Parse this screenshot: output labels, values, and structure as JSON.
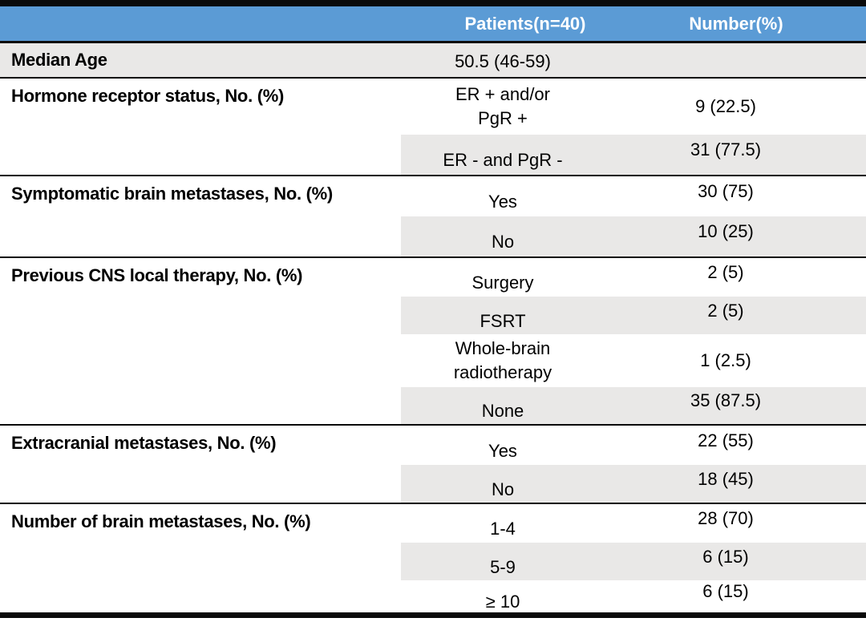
{
  "colors": {
    "header_bg": "#5B9BD5",
    "header_text": "#FFFFFF",
    "band_bg": "#E9E8E7",
    "line_color": "#0A0A0A",
    "body_text": "#000000",
    "page_bg": "#FFFFFF"
  },
  "table": {
    "header": {
      "empty": "",
      "patients": "Patients(n=40)",
      "number": "Number(%)"
    },
    "sections": [
      {
        "label": "Median Age",
        "rows": [
          {
            "option": "50.5 (46-59)",
            "number": ""
          }
        ]
      },
      {
        "label": "Hormone receptor status, No. (%)",
        "rows": [
          {
            "option_lines": [
              "ER + and/or",
              "PgR +"
            ],
            "number": "9 (22.5)"
          },
          {
            "option": "ER - and PgR -",
            "number": "31 (77.5)"
          }
        ]
      },
      {
        "label": "Symptomatic brain metastases, No. (%)",
        "rows": [
          {
            "option": "Yes",
            "number": "30 (75)"
          },
          {
            "option": "No",
            "number": "10 (25)"
          }
        ]
      },
      {
        "label": "Previous CNS local therapy, No. (%)",
        "rows": [
          {
            "option": "Surgery",
            "number": "2 (5)"
          },
          {
            "option": "FSRT",
            "number": "2 (5)"
          },
          {
            "option_lines": [
              "Whole-brain",
              "radiotherapy"
            ],
            "number": "1 (2.5)"
          },
          {
            "option": "None",
            "number": "35 (87.5)"
          }
        ]
      },
      {
        "label": "Extracranial metastases, No. (%)",
        "rows": [
          {
            "option": "Yes",
            "number": "22 (55)"
          },
          {
            "option": "No",
            "number": "18 (45)"
          }
        ]
      },
      {
        "label": "Number of brain metastases, No. (%)",
        "rows": [
          {
            "option": "1-4",
            "number": "28 (70)"
          },
          {
            "option": "5-9",
            "number": "6 (15)"
          },
          {
            "option": "≥ 10",
            "number": "6 (15)"
          }
        ]
      }
    ]
  }
}
